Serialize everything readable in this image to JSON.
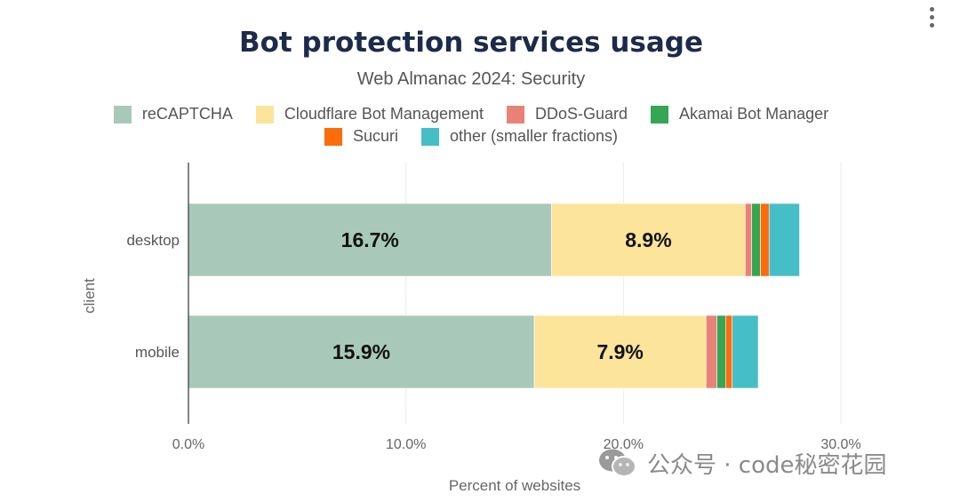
{
  "menu": {
    "icon": "more-vertical-icon"
  },
  "watermark": {
    "text": "公众号 · code秘密花园",
    "icon": "wechat-icon"
  },
  "chart_data": {
    "type": "bar",
    "orientation": "horizontal",
    "stacked": true,
    "title": "Bot protection services usage",
    "subtitle": "Web Almanac 2024: Security",
    "xlabel": "Percent of websites",
    "ylabel": "client",
    "xlim": [
      0,
      0.32
    ],
    "xticks": [
      0,
      0.1,
      0.2,
      0.3
    ],
    "xtick_labels": [
      "0.0%",
      "10.0%",
      "20.0%",
      "30.0%"
    ],
    "grid": true,
    "legend": "top",
    "categories": [
      "desktop",
      "mobile"
    ],
    "series": [
      {
        "name": "reCAPTCHA",
        "color": "#a8c9b9",
        "values": [
          0.167,
          0.159
        ],
        "labels": [
          "16.7%",
          "15.9%"
        ]
      },
      {
        "name": "Cloudflare Bot Management",
        "color": "#fde49b",
        "values": [
          0.089,
          0.079
        ],
        "labels": [
          "8.9%",
          "7.9%"
        ]
      },
      {
        "name": "DDoS-Guard",
        "color": "#e98276",
        "values": [
          0.003,
          0.005
        ],
        "labels": [
          "",
          ""
        ]
      },
      {
        "name": "Akamai Bot Manager",
        "color": "#35a654",
        "values": [
          0.004,
          0.004
        ],
        "labels": [
          "",
          ""
        ]
      },
      {
        "name": "Sucuri",
        "color": "#fa6c0c",
        "values": [
          0.004,
          0.003
        ],
        "labels": [
          "",
          ""
        ]
      },
      {
        "name": "other (smaller fractions)",
        "color": "#46bec8",
        "values": [
          0.014,
          0.012
        ],
        "labels": [
          "",
          ""
        ]
      }
    ]
  }
}
